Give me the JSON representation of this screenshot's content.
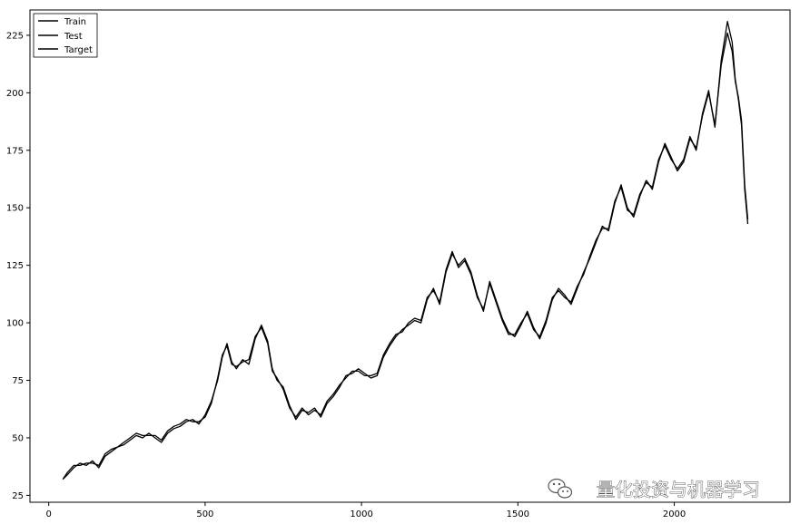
{
  "chart_data": {
    "type": "line",
    "title": "",
    "xlabel": "",
    "ylabel": "",
    "xlim": [
      -60,
      2370
    ],
    "ylim": [
      22,
      236
    ],
    "x_ticks": [
      0,
      500,
      1000,
      1500,
      2000
    ],
    "x_tick_labels": [
      "0",
      "500",
      "1000",
      "1500",
      "2000"
    ],
    "y_ticks": [
      25,
      50,
      75,
      100,
      125,
      150,
      175,
      200,
      225
    ],
    "y_tick_labels": [
      "25",
      "50",
      "75",
      "100",
      "125",
      "150",
      "175",
      "200",
      "225"
    ],
    "grid": false,
    "legend_placement": "top-left",
    "series": [
      {
        "name": "Train",
        "color": "#000000",
        "points": [
          [
            45,
            32
          ],
          [
            60,
            34
          ],
          [
            80,
            37
          ],
          [
            100,
            39
          ],
          [
            120,
            38
          ],
          [
            140,
            40
          ],
          [
            160,
            37
          ],
          [
            180,
            42
          ],
          [
            200,
            44
          ],
          [
            220,
            46
          ],
          [
            240,
            47
          ],
          [
            260,
            49
          ],
          [
            280,
            51
          ],
          [
            300,
            50
          ],
          [
            320,
            52
          ],
          [
            340,
            50
          ],
          [
            360,
            48
          ],
          [
            380,
            52
          ],
          [
            400,
            54
          ],
          [
            420,
            55
          ],
          [
            440,
            57
          ],
          [
            460,
            58
          ],
          [
            480,
            56
          ],
          [
            500,
            60
          ],
          [
            520,
            66
          ],
          [
            540,
            75
          ],
          [
            555,
            85
          ],
          [
            570,
            91
          ],
          [
            585,
            83
          ],
          [
            600,
            80
          ],
          [
            620,
            84
          ],
          [
            640,
            82
          ],
          [
            660,
            93
          ],
          [
            680,
            99
          ],
          [
            700,
            92
          ],
          [
            715,
            80
          ],
          [
            730,
            75
          ],
          [
            750,
            72
          ],
          [
            770,
            64
          ],
          [
            790,
            58
          ],
          [
            810,
            62
          ],
          [
            830,
            61
          ],
          [
            850,
            63
          ],
          [
            870,
            59
          ],
          [
            890,
            65
          ],
          [
            910,
            68
          ],
          [
            930,
            72
          ],
          [
            950,
            77
          ],
          [
            970,
            78
          ],
          [
            990,
            80
          ],
          [
            1010,
            78
          ],
          [
            1030,
            76
          ],
          [
            1050,
            77
          ],
          [
            1070,
            85
          ],
          [
            1090,
            90
          ],
          [
            1110,
            94
          ],
          [
            1130,
            97
          ],
          [
            1150,
            99
          ],
          [
            1170,
            101
          ],
          [
            1190,
            100
          ],
          [
            1210,
            110
          ],
          [
            1230,
            115
          ],
          [
            1250,
            108
          ],
          [
            1270,
            122
          ],
          [
            1290,
            130
          ],
          [
            1310,
            125
          ],
          [
            1330,
            128
          ],
          [
            1350,
            122
          ],
          [
            1370,
            112
          ],
          [
            1390,
            105
          ],
          [
            1410,
            118
          ],
          [
            1430,
            110
          ],
          [
            1450,
            102
          ],
          [
            1470,
            96
          ],
          [
            1490,
            94
          ],
          [
            1510,
            99
          ],
          [
            1530,
            105
          ],
          [
            1550,
            98
          ],
          [
            1570,
            93
          ],
          [
            1590,
            100
          ],
          [
            1610,
            110
          ],
          [
            1630,
            115
          ],
          [
            1650,
            112
          ],
          [
            1670,
            108
          ],
          [
            1690,
            115
          ],
          [
            1710,
            122
          ],
          [
            1730,
            128
          ],
          [
            1750,
            135
          ],
          [
            1770,
            142
          ],
          [
            1790,
            140
          ],
          [
            1810,
            152
          ],
          [
            1830,
            160
          ],
          [
            1850,
            150
          ],
          [
            1870,
            146
          ],
          [
            1890,
            155
          ],
          [
            1910,
            162
          ]
        ]
      },
      {
        "name": "Test",
        "color": "#000000",
        "points": [
          [
            1910,
            162
          ],
          [
            1930,
            158
          ],
          [
            1950,
            170
          ],
          [
            1970,
            178
          ],
          [
            1990,
            172
          ],
          [
            2010,
            166
          ],
          [
            2030,
            170
          ],
          [
            2050,
            180
          ],
          [
            2070,
            176
          ],
          [
            2090,
            190
          ],
          [
            2110,
            200
          ],
          [
            2130,
            186
          ],
          [
            2150,
            212
          ],
          [
            2170,
            226
          ],
          [
            2185,
            218
          ],
          [
            2195,
            205
          ],
          [
            2205,
            198
          ],
          [
            2215,
            188
          ],
          [
            2225,
            160
          ],
          [
            2235,
            145
          ]
        ]
      },
      {
        "name": "Target",
        "color": "#000000",
        "points": [
          [
            45,
            32
          ],
          [
            60,
            35
          ],
          [
            80,
            38
          ],
          [
            100,
            38
          ],
          [
            120,
            39
          ],
          [
            140,
            39
          ],
          [
            160,
            38
          ],
          [
            180,
            43
          ],
          [
            200,
            45
          ],
          [
            220,
            46
          ],
          [
            240,
            48
          ],
          [
            260,
            50
          ],
          [
            280,
            52
          ],
          [
            300,
            51
          ],
          [
            320,
            51
          ],
          [
            340,
            51
          ],
          [
            360,
            49
          ],
          [
            380,
            53
          ],
          [
            400,
            55
          ],
          [
            420,
            56
          ],
          [
            440,
            58
          ],
          [
            460,
            57
          ],
          [
            480,
            57
          ],
          [
            500,
            59
          ],
          [
            520,
            65
          ],
          [
            540,
            76
          ],
          [
            555,
            86
          ],
          [
            570,
            90
          ],
          [
            585,
            82
          ],
          [
            600,
            81
          ],
          [
            620,
            83
          ],
          [
            640,
            84
          ],
          [
            660,
            94
          ],
          [
            680,
            98
          ],
          [
            700,
            91
          ],
          [
            715,
            79
          ],
          [
            730,
            76
          ],
          [
            750,
            71
          ],
          [
            770,
            63
          ],
          [
            790,
            59
          ],
          [
            810,
            63
          ],
          [
            830,
            60
          ],
          [
            850,
            62
          ],
          [
            870,
            60
          ],
          [
            890,
            66
          ],
          [
            910,
            69
          ],
          [
            930,
            73
          ],
          [
            950,
            76
          ],
          [
            970,
            79
          ],
          [
            990,
            79
          ],
          [
            1010,
            77
          ],
          [
            1030,
            77
          ],
          [
            1050,
            78
          ],
          [
            1070,
            86
          ],
          [
            1090,
            91
          ],
          [
            1110,
            95
          ],
          [
            1130,
            96
          ],
          [
            1150,
            100
          ],
          [
            1170,
            102
          ],
          [
            1190,
            101
          ],
          [
            1210,
            111
          ],
          [
            1230,
            114
          ],
          [
            1250,
            109
          ],
          [
            1270,
            123
          ],
          [
            1290,
            131
          ],
          [
            1310,
            124
          ],
          [
            1330,
            127
          ],
          [
            1350,
            121
          ],
          [
            1370,
            111
          ],
          [
            1390,
            106
          ],
          [
            1410,
            117
          ],
          [
            1430,
            109
          ],
          [
            1450,
            101
          ],
          [
            1470,
            95
          ],
          [
            1490,
            95
          ],
          [
            1510,
            100
          ],
          [
            1530,
            104
          ],
          [
            1550,
            97
          ],
          [
            1570,
            94
          ],
          [
            1590,
            101
          ],
          [
            1610,
            111
          ],
          [
            1630,
            114
          ],
          [
            1650,
            111
          ],
          [
            1670,
            109
          ],
          [
            1690,
            116
          ],
          [
            1710,
            121
          ],
          [
            1730,
            129
          ],
          [
            1750,
            136
          ],
          [
            1770,
            141
          ],
          [
            1790,
            141
          ],
          [
            1810,
            153
          ],
          [
            1830,
            159
          ],
          [
            1850,
            149
          ],
          [
            1870,
            147
          ],
          [
            1890,
            156
          ],
          [
            1910,
            161
          ],
          [
            1930,
            159
          ],
          [
            1950,
            171
          ],
          [
            1970,
            177
          ],
          [
            1990,
            171
          ],
          [
            2010,
            167
          ],
          [
            2030,
            171
          ],
          [
            2050,
            181
          ],
          [
            2070,
            175
          ],
          [
            2090,
            191
          ],
          [
            2110,
            201
          ],
          [
            2130,
            185
          ],
          [
            2150,
            214
          ],
          [
            2170,
            231
          ],
          [
            2185,
            222
          ],
          [
            2195,
            206
          ],
          [
            2205,
            197
          ],
          [
            2215,
            186
          ],
          [
            2225,
            158
          ],
          [
            2235,
            143
          ]
        ]
      }
    ]
  },
  "watermark": {
    "text": "量化投资与机器学习",
    "icon": "wechat-icon"
  }
}
